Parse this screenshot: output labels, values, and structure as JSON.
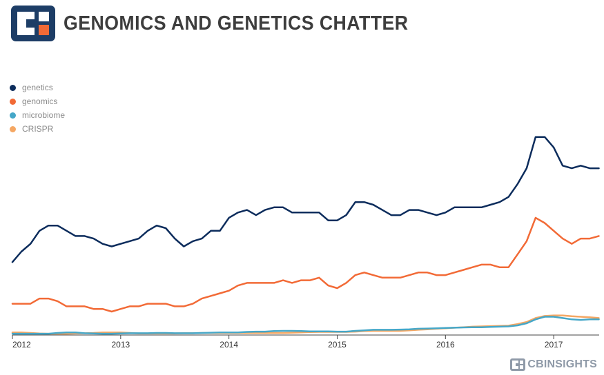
{
  "header": {
    "title": "GENOMICS AND GENETICS CHATTER",
    "logo_icon": "cb-insights-square-logo-icon"
  },
  "footer": {
    "brand": "CBINSIGHTS",
    "brand_icon": "cb-insights-mark-icon"
  },
  "colors": {
    "genetics": "#0c2c5c",
    "genomics": "#f26a36",
    "microbiome": "#45a7c8",
    "CRISPR": "#f5a763",
    "logo_navy": "#1d3d66",
    "logo_orange": "#f26a36",
    "axis": "#444444"
  },
  "chart_data": {
    "type": "line",
    "title": "GENOMICS AND GENETICS CHATTER",
    "xlabel": "",
    "ylabel": "",
    "grid": false,
    "legend_position": "top-left",
    "x_ticks": [
      "2012",
      "2013",
      "2014",
      "2015",
      "2016",
      "2017"
    ],
    "x_range": [
      2012.0,
      2017.42
    ],
    "ylim": [
      0,
      100
    ],
    "x": [
      2012.0,
      2012.083,
      2012.167,
      2012.25,
      2012.333,
      2012.417,
      2012.5,
      2012.583,
      2012.667,
      2012.75,
      2012.833,
      2012.917,
      2013.0,
      2013.083,
      2013.167,
      2013.25,
      2013.333,
      2013.417,
      2013.5,
      2013.583,
      2013.667,
      2013.75,
      2013.833,
      2013.917,
      2014.0,
      2014.083,
      2014.167,
      2014.25,
      2014.333,
      2014.417,
      2014.5,
      2014.583,
      2014.667,
      2014.75,
      2014.833,
      2014.917,
      2015.0,
      2015.083,
      2015.167,
      2015.25,
      2015.333,
      2015.417,
      2015.5,
      2015.583,
      2015.667,
      2015.75,
      2015.833,
      2015.917,
      2016.0,
      2016.083,
      2016.167,
      2016.25,
      2016.333,
      2016.417,
      2016.5,
      2016.583,
      2016.667,
      2016.75,
      2016.833,
      2016.917,
      2017.0,
      2017.083,
      2017.167,
      2017.25,
      2017.333,
      2017.417
    ],
    "series": [
      {
        "name": "genetics",
        "values": [
          28,
          32,
          35,
          40,
          42,
          42,
          40,
          38,
          38,
          37,
          35,
          34,
          35,
          36,
          37,
          40,
          42,
          41,
          37,
          34,
          36,
          37,
          40,
          40,
          45,
          47,
          48,
          46,
          48,
          49,
          49,
          47,
          47,
          47,
          47,
          44,
          44,
          46,
          51,
          51,
          50,
          48,
          46,
          46,
          48,
          48,
          47,
          46,
          47,
          49,
          49,
          49,
          49,
          50,
          51,
          53,
          58,
          64,
          76,
          76,
          72,
          65,
          64,
          65,
          64,
          64
        ],
        "color": "#0c2c5c"
      },
      {
        "name": "genomics",
        "values": [
          12,
          12,
          12,
          14,
          14,
          13,
          11,
          11,
          11,
          10,
          10,
          9,
          10,
          11,
          11,
          12,
          12,
          12,
          11,
          11,
          12,
          14,
          15,
          16,
          17,
          19,
          20,
          20,
          20,
          20,
          21,
          20,
          21,
          21,
          22,
          19,
          18,
          20,
          23,
          24,
          23,
          22,
          22,
          22,
          23,
          24,
          24,
          23,
          23,
          24,
          25,
          26,
          27,
          27,
          26,
          26,
          31,
          36,
          45,
          43,
          40,
          37,
          35,
          37,
          37,
          38
        ],
        "color": "#f26a36"
      },
      {
        "name": "microbiome",
        "values": [
          0.5,
          0.5,
          0.5,
          0.5,
          0.5,
          0.8,
          1,
          1,
          0.7,
          0.6,
          0.5,
          0.5,
          0.6,
          0.7,
          0.7,
          0.7,
          0.8,
          0.8,
          0.7,
          0.7,
          0.7,
          0.8,
          0.9,
          1,
          1,
          1,
          1.2,
          1.3,
          1.3,
          1.5,
          1.6,
          1.6,
          1.5,
          1.4,
          1.4,
          1.4,
          1.3,
          1.3,
          1.6,
          1.8,
          2,
          2,
          2,
          2.1,
          2.2,
          2.4,
          2.5,
          2.6,
          2.7,
          2.8,
          2.9,
          3,
          3,
          3.1,
          3.2,
          3.3,
          3.7,
          4.5,
          6,
          7,
          7,
          6.5,
          6,
          5.8,
          6,
          6
        ],
        "color": "#45a7c8"
      },
      {
        "name": "CRISPR",
        "values": [
          1,
          1,
          0.8,
          0.6,
          0.5,
          0.5,
          0.5,
          0.6,
          0.7,
          0.8,
          1,
          1,
          1,
          0.8,
          0.6,
          0.6,
          0.6,
          0.6,
          0.6,
          0.7,
          0.7,
          0.8,
          0.8,
          0.8,
          0.8,
          0.8,
          0.8,
          0.8,
          0.8,
          0.8,
          0.8,
          0.9,
          1,
          1.1,
          1.2,
          1.2,
          1.2,
          1.2,
          1.3,
          1.5,
          1.6,
          1.6,
          1.6,
          1.6,
          1.8,
          2,
          2.2,
          2.4,
          2.6,
          2.8,
          3,
          3.2,
          3.3,
          3.4,
          3.5,
          3.6,
          4.2,
          5,
          6.5,
          7.3,
          7.5,
          7.5,
          7.2,
          7,
          6.8,
          6.5
        ],
        "color": "#f5a763"
      }
    ]
  }
}
